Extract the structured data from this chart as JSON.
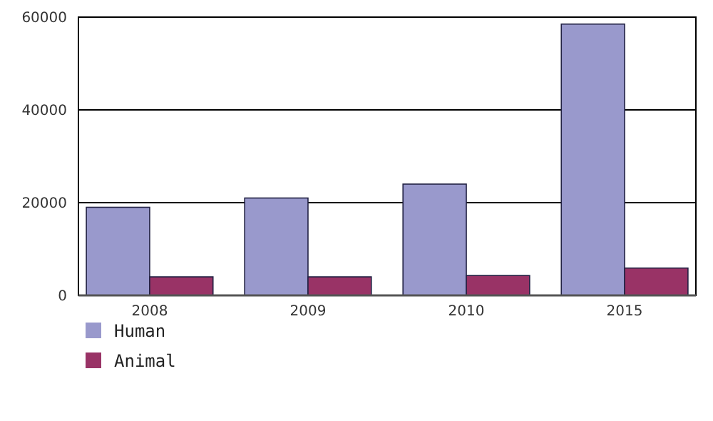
{
  "chart_data": {
    "type": "bar",
    "categories": [
      "2008",
      "2009",
      "2010",
      "2015"
    ],
    "series": [
      {
        "name": "Human",
        "color": "#9999cc",
        "values": [
          19000,
          21000,
          24000,
          58500
        ]
      },
      {
        "name": "Animal",
        "color": "#993366",
        "values": [
          4000,
          4000,
          4300,
          5900
        ]
      }
    ],
    "ylim": [
      0,
      60000
    ],
    "yticks": [
      0,
      20000,
      40000,
      60000
    ],
    "grid": "y",
    "legend": "bottom left"
  }
}
